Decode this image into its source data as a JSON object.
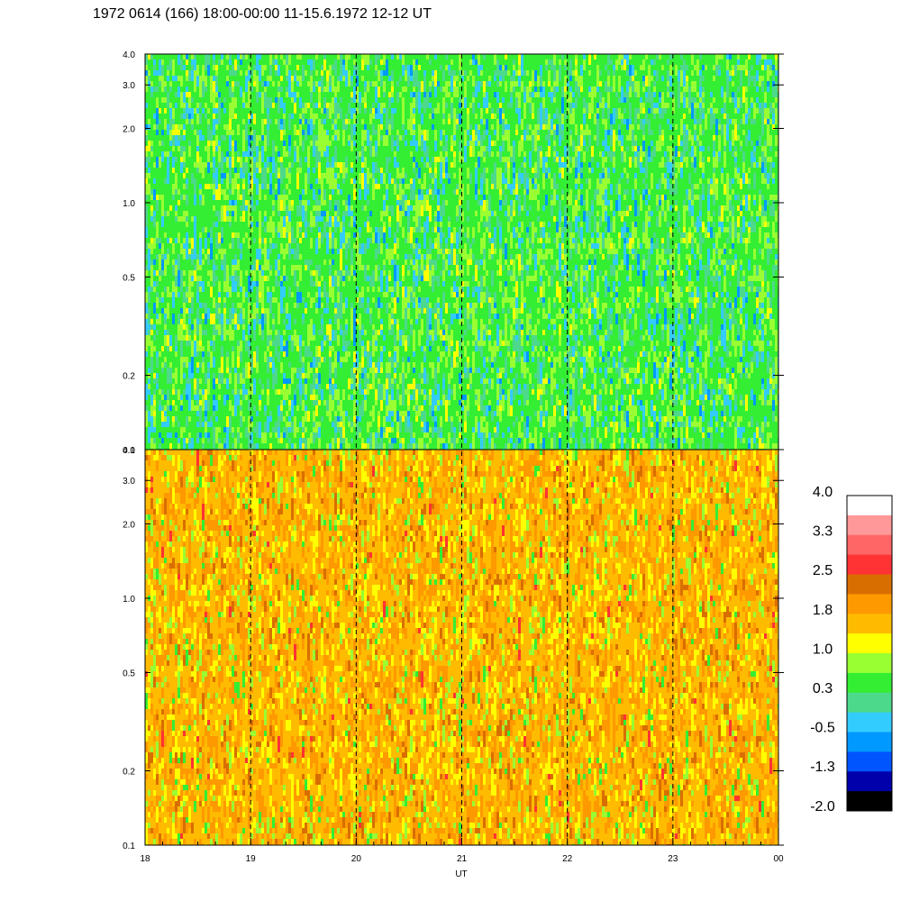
{
  "title": "1972 0614 (166) 18:00-00:00 11-15.6.1972  12-12 UT",
  "chart_data": [
    {
      "type": "heatmap",
      "panel": "upper",
      "x_range": [
        18,
        24
      ],
      "y_scale": "log",
      "y_range": [
        0.1,
        4.0
      ],
      "y_ticks": [
        "0.1",
        "0.2",
        "0.5",
        "1.0",
        "2.0",
        "3.0",
        "4.0"
      ],
      "dominant_value_range": [
        0.0,
        1.0
      ]
    },
    {
      "type": "heatmap",
      "panel": "lower",
      "x_range": [
        18,
        24
      ],
      "y_scale": "log",
      "y_range": [
        0.1,
        4.0
      ],
      "y_ticks": [
        "0.1",
        "0.2",
        "0.5",
        "1.0",
        "2.0",
        "3.0",
        "4.0"
      ],
      "dominant_value_range": [
        1.0,
        2.5
      ]
    }
  ],
  "x_axis": {
    "xlabel": "UT",
    "ticks": [
      "18",
      "19",
      "20",
      "21",
      "22",
      "23",
      "00"
    ],
    "dashed_gridlines_at_hours": [
      19,
      20,
      21,
      22,
      23
    ]
  },
  "colorbar": {
    "labels": [
      "4.0",
      "3.3",
      "2.5",
      "1.8",
      "1.0",
      "0.3",
      "-0.5",
      "-1.3",
      "-2.0"
    ],
    "colors": [
      "#ffffff",
      "#ff9999",
      "#ff6666",
      "#ff3333",
      "#d96e00",
      "#ff9900",
      "#ffbb00",
      "#ffff00",
      "#99ff33",
      "#33ee33",
      "#4dd98c",
      "#33ccff",
      "#0099ff",
      "#0055ff",
      "#0000aa",
      "#000000"
    ]
  }
}
